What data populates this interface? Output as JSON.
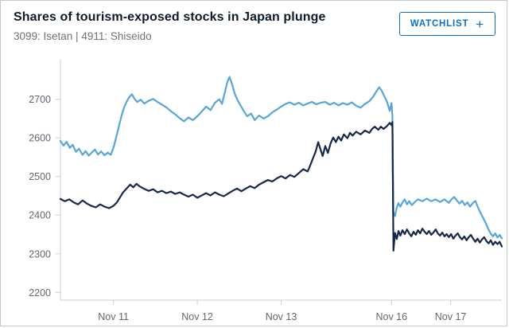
{
  "header": {
    "title": "Shares of tourism-exposed stocks in Japan plunge",
    "subtitle": "3099: Isetan | 4911: Shiseido",
    "watchlist_label": "WATCHLIST",
    "watchlist_plus": "+"
  },
  "colors": {
    "accent_blue": "#0a6fc2",
    "series_light_blue": "#58a6d8",
    "series_navy": "#16294a",
    "axis": "#c9ced3",
    "tick_label": "#5e6870"
  },
  "chart_data": {
    "type": "line",
    "title": "Shares of tourism-exposed stocks in Japan plunge",
    "subtitle": "3099: Isetan | 4911: Shiseido",
    "grid": false,
    "legend_position": "none",
    "x_unit": "percent of plot width (trading time Nov 11 - Nov 17)",
    "ylim": [
      2180,
      2790
    ],
    "yticks": [
      2200,
      2300,
      2400,
      2500,
      2600,
      2700
    ],
    "xticks": [
      {
        "label": "Nov 11",
        "x": 12
      },
      {
        "label": "Nov 12",
        "x": 31
      },
      {
        "label": "Nov 13",
        "x": 50
      },
      {
        "label": "Nov 16",
        "x": 75
      },
      {
        "label": "Nov 17",
        "x": 88.4
      }
    ],
    "series": [
      {
        "name": "light-blue-series",
        "color_key": "series_light_blue",
        "points": [
          [
            0,
            2592
          ],
          [
            0.7,
            2580
          ],
          [
            1.4,
            2590
          ],
          [
            2.1,
            2574
          ],
          [
            2.8,
            2582
          ],
          [
            3.5,
            2564
          ],
          [
            4.2,
            2572
          ],
          [
            5,
            2556
          ],
          [
            5.7,
            2566
          ],
          [
            6.4,
            2554
          ],
          [
            7.1,
            2562
          ],
          [
            7.8,
            2570
          ],
          [
            8.5,
            2557
          ],
          [
            9.2,
            2565
          ],
          [
            10,
            2555
          ],
          [
            10.7,
            2562
          ],
          [
            11.4,
            2556
          ],
          [
            12,
            2574
          ],
          [
            12.6,
            2600
          ],
          [
            13.2,
            2628
          ],
          [
            13.8,
            2656
          ],
          [
            14.4,
            2678
          ],
          [
            15,
            2694
          ],
          [
            15.6,
            2706
          ],
          [
            16.2,
            2713
          ],
          [
            16.8,
            2701
          ],
          [
            17.4,
            2693
          ],
          [
            18.2,
            2699
          ],
          [
            19,
            2689
          ],
          [
            20,
            2696
          ],
          [
            21,
            2701
          ],
          [
            22,
            2693
          ],
          [
            23,
            2686
          ],
          [
            24,
            2679
          ],
          [
            25,
            2669
          ],
          [
            26,
            2661
          ],
          [
            27,
            2651
          ],
          [
            28,
            2643
          ],
          [
            29,
            2653
          ],
          [
            30,
            2646
          ],
          [
            31,
            2656
          ],
          [
            32,
            2668
          ],
          [
            33,
            2681
          ],
          [
            34,
            2672
          ],
          [
            35,
            2691
          ],
          [
            36,
            2700
          ],
          [
            36.6,
            2688
          ],
          [
            37.2,
            2716
          ],
          [
            37.8,
            2744
          ],
          [
            38.3,
            2758
          ],
          [
            38.9,
            2738
          ],
          [
            39.5,
            2714
          ],
          [
            40.1,
            2698
          ],
          [
            40.8,
            2684
          ],
          [
            41.5,
            2670
          ],
          [
            42.3,
            2656
          ],
          [
            43.2,
            2663
          ],
          [
            44,
            2646
          ],
          [
            45,
            2658
          ],
          [
            46,
            2650
          ],
          [
            47,
            2656
          ],
          [
            48,
            2666
          ],
          [
            49,
            2673
          ],
          [
            50,
            2681
          ],
          [
            51,
            2688
          ],
          [
            52,
            2692
          ],
          [
            53,
            2686
          ],
          [
            54,
            2691
          ],
          [
            55,
            2684
          ],
          [
            56,
            2689
          ],
          [
            57,
            2693
          ],
          [
            58,
            2687
          ],
          [
            59,
            2691
          ],
          [
            60,
            2693
          ],
          [
            61,
            2686
          ],
          [
            62,
            2691
          ],
          [
            63,
            2684
          ],
          [
            64,
            2690
          ],
          [
            65,
            2686
          ],
          [
            66,
            2692
          ],
          [
            67,
            2683
          ],
          [
            68,
            2678
          ],
          [
            69,
            2688
          ],
          [
            70,
            2695
          ],
          [
            70.8,
            2706
          ],
          [
            71.5,
            2719
          ],
          [
            72.2,
            2731
          ],
          [
            72.8,
            2722
          ],
          [
            73.4,
            2707
          ],
          [
            74,
            2693
          ],
          [
            74.6,
            2670
          ],
          [
            75,
            2690
          ],
          [
            75.2,
            2655
          ],
          [
            75.4,
            2408
          ],
          [
            75.8,
            2398
          ],
          [
            76.2,
            2420
          ],
          [
            76.6,
            2431
          ],
          [
            77,
            2422
          ],
          [
            77.5,
            2433
          ],
          [
            78,
            2441
          ],
          [
            78.5,
            2428
          ],
          [
            79,
            2436
          ],
          [
            79.6,
            2426
          ],
          [
            80.2,
            2433
          ],
          [
            81,
            2441
          ],
          [
            82,
            2436
          ],
          [
            83,
            2443
          ],
          [
            84,
            2436
          ],
          [
            85,
            2441
          ],
          [
            86,
            2434
          ],
          [
            87,
            2441
          ],
          [
            88,
            2432
          ],
          [
            88.6,
            2441
          ],
          [
            89.2,
            2447
          ],
          [
            89.8,
            2438
          ],
          [
            90.4,
            2430
          ],
          [
            91,
            2437
          ],
          [
            91.6,
            2426
          ],
          [
            92.2,
            2433
          ],
          [
            92.8,
            2422
          ],
          [
            93.4,
            2431
          ],
          [
            94,
            2437
          ],
          [
            94.6,
            2420
          ],
          [
            95.2,
            2405
          ],
          [
            95.8,
            2392
          ],
          [
            96.4,
            2378
          ],
          [
            97,
            2362
          ],
          [
            97.5,
            2352
          ],
          [
            98,
            2345
          ],
          [
            98.5,
            2353
          ],
          [
            99,
            2342
          ],
          [
            99.5,
            2349
          ],
          [
            100,
            2340
          ]
        ]
      },
      {
        "name": "navy-series",
        "color_key": "series_navy",
        "points": [
          [
            0,
            2442
          ],
          [
            1,
            2436
          ],
          [
            2,
            2441
          ],
          [
            3,
            2433
          ],
          [
            4,
            2428
          ],
          [
            5,
            2438
          ],
          [
            6,
            2430
          ],
          [
            7,
            2424
          ],
          [
            8,
            2420
          ],
          [
            9,
            2428
          ],
          [
            10,
            2422
          ],
          [
            11,
            2418
          ],
          [
            12,
            2424
          ],
          [
            12.8,
            2433
          ],
          [
            13.5,
            2446
          ],
          [
            14.2,
            2459
          ],
          [
            15,
            2469
          ],
          [
            15.8,
            2479
          ],
          [
            16.5,
            2472
          ],
          [
            17.2,
            2481
          ],
          [
            18,
            2474
          ],
          [
            19,
            2468
          ],
          [
            20,
            2463
          ],
          [
            21,
            2467
          ],
          [
            22,
            2459
          ],
          [
            23,
            2463
          ],
          [
            24,
            2457
          ],
          [
            25,
            2461
          ],
          [
            26,
            2455
          ],
          [
            27,
            2459
          ],
          [
            28,
            2453
          ],
          [
            29,
            2448
          ],
          [
            30,
            2453
          ],
          [
            31,
            2445
          ],
          [
            32,
            2451
          ],
          [
            33,
            2457
          ],
          [
            34,
            2451
          ],
          [
            35,
            2459
          ],
          [
            36,
            2453
          ],
          [
            37,
            2449
          ],
          [
            38,
            2456
          ],
          [
            39,
            2463
          ],
          [
            40,
            2469
          ],
          [
            41,
            2462
          ],
          [
            42,
            2469
          ],
          [
            43,
            2475
          ],
          [
            44,
            2470
          ],
          [
            45,
            2479
          ],
          [
            46,
            2485
          ],
          [
            47,
            2491
          ],
          [
            48,
            2487
          ],
          [
            49,
            2495
          ],
          [
            50,
            2501
          ],
          [
            51,
            2495
          ],
          [
            52,
            2504
          ],
          [
            53,
            2499
          ],
          [
            54,
            2509
          ],
          [
            55,
            2519
          ],
          [
            56,
            2513
          ],
          [
            56.6,
            2529
          ],
          [
            57.2,
            2547
          ],
          [
            57.8,
            2564
          ],
          [
            58.4,
            2589
          ],
          [
            58.9,
            2571
          ],
          [
            59.4,
            2553
          ],
          [
            60,
            2579
          ],
          [
            60.6,
            2561
          ],
          [
            61.2,
            2586
          ],
          [
            61.8,
            2601
          ],
          [
            62.4,
            2589
          ],
          [
            63,
            2603
          ],
          [
            63.6,
            2593
          ],
          [
            64.2,
            2609
          ],
          [
            65,
            2599
          ],
          [
            65.6,
            2613
          ],
          [
            66.2,
            2606
          ],
          [
            67,
            2616
          ],
          [
            68,
            2609
          ],
          [
            69,
            2619
          ],
          [
            70,
            2613
          ],
          [
            70.6,
            2623
          ],
          [
            71.2,
            2629
          ],
          [
            72,
            2621
          ],
          [
            72.6,
            2629
          ],
          [
            73.2,
            2623
          ],
          [
            74,
            2631
          ],
          [
            74.6,
            2639
          ],
          [
            75,
            2633
          ],
          [
            75.2,
            2641
          ],
          [
            75.45,
            2308
          ],
          [
            75.8,
            2354
          ],
          [
            76.2,
            2338
          ],
          [
            76.6,
            2359
          ],
          [
            77,
            2347
          ],
          [
            77.5,
            2361
          ],
          [
            78,
            2351
          ],
          [
            78.5,
            2363
          ],
          [
            79,
            2353
          ],
          [
            79.5,
            2345
          ],
          [
            80,
            2357
          ],
          [
            80.5,
            2349
          ],
          [
            81,
            2361
          ],
          [
            81.5,
            2353
          ],
          [
            82,
            2365
          ],
          [
            82.5,
            2357
          ],
          [
            83,
            2351
          ],
          [
            83.5,
            2359
          ],
          [
            84,
            2349
          ],
          [
            84.5,
            2355
          ],
          [
            85,
            2363
          ],
          [
            85.5,
            2353
          ],
          [
            86,
            2347
          ],
          [
            86.5,
            2355
          ],
          [
            87,
            2345
          ],
          [
            87.5,
            2351
          ],
          [
            88,
            2343
          ],
          [
            88.5,
            2351
          ],
          [
            89,
            2339
          ],
          [
            89.5,
            2347
          ],
          [
            90,
            2353
          ],
          [
            90.5,
            2343
          ],
          [
            91,
            2337
          ],
          [
            91.5,
            2345
          ],
          [
            92,
            2335
          ],
          [
            92.5,
            2343
          ],
          [
            93,
            2349
          ],
          [
            93.5,
            2339
          ],
          [
            94,
            2331
          ],
          [
            94.5,
            2339
          ],
          [
            95,
            2329
          ],
          [
            95.5,
            2337
          ],
          [
            96,
            2343
          ],
          [
            96.5,
            2333
          ],
          [
            97,
            2327
          ],
          [
            97.5,
            2335
          ],
          [
            98,
            2323
          ],
          [
            98.5,
            2331
          ],
          [
            99,
            2325
          ],
          [
            99.5,
            2331
          ],
          [
            100,
            2319
          ]
        ]
      }
    ]
  }
}
